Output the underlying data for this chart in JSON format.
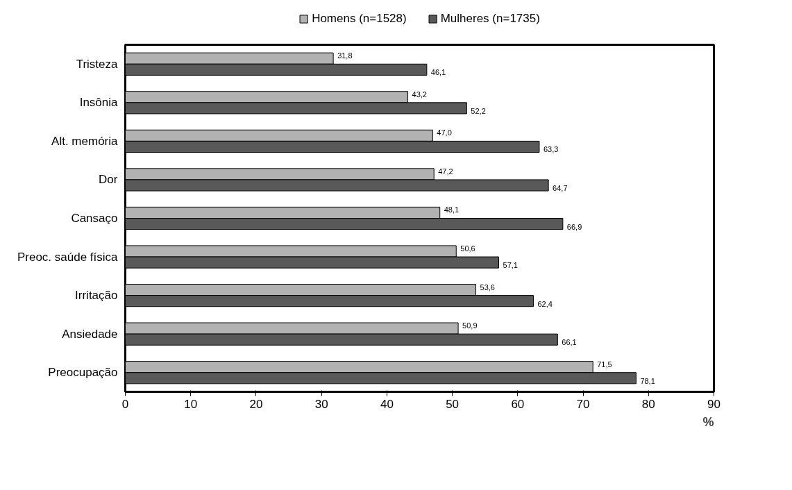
{
  "chart_data": {
    "type": "bar",
    "orientation": "horizontal",
    "xlabel": "%",
    "categories": [
      "Tristeza",
      "Insônia",
      "Alt. memória",
      "Dor",
      "Cansaço",
      "Preoc. saúde física",
      "Irritação",
      "Ansiedade",
      "Preocupação"
    ],
    "series": [
      {
        "name": "Homens (n=1528)",
        "color": "#b2b2b2",
        "values": [
          31.8,
          43.2,
          47.0,
          47.2,
          48.1,
          50.6,
          53.6,
          50.9,
          71.5
        ],
        "value_labels": [
          "31,8",
          "43,2",
          "47,0",
          "47,2",
          "48,1",
          "50,6",
          "53,6",
          "50,9",
          "71,5"
        ]
      },
      {
        "name": "Mulheres (n=1735)",
        "color": "#595959",
        "values": [
          46.1,
          52.2,
          63.3,
          64.7,
          66.9,
          57.1,
          62.4,
          66.1,
          78.1
        ],
        "value_labels": [
          "46,1",
          "52,2",
          "63,3",
          "64,7",
          "66,9",
          "57,1",
          "62,4",
          "66,1",
          "78,1"
        ]
      }
    ],
    "xlim": [
      0,
      90
    ],
    "xticks": [
      0,
      10,
      20,
      30,
      40,
      50,
      60,
      70,
      80,
      90
    ],
    "grid": false,
    "legend": "top"
  }
}
